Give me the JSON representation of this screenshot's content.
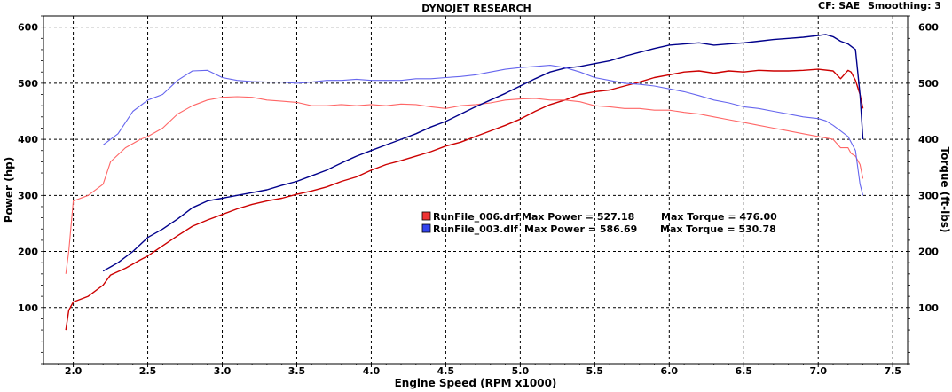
{
  "header": {
    "title": "DYNOJET RESEARCH",
    "correction_label": "CF: SAE",
    "smoothing_label": "Smoothing: 3"
  },
  "chart_data": {
    "type": "line",
    "title": "DYNOJET RESEARCH",
    "xlabel": "Engine Speed (RPM x1000)",
    "ylabel": "Power (hp)",
    "y2label": "Torque (ft-lbs)",
    "xlim": [
      1.8,
      7.6
    ],
    "ylim": [
      0,
      620
    ],
    "y2lim": [
      0,
      620
    ],
    "xticks": [
      "2.0",
      "2.5",
      "3.0",
      "3.5",
      "4.0",
      "4.5",
      "5.0",
      "5.5",
      "6.0",
      "6.5",
      "7.0",
      "7.5"
    ],
    "yticks": [
      "100",
      "200",
      "300",
      "400",
      "500",
      "600"
    ],
    "y2ticks": [
      "100",
      "200",
      "300",
      "400",
      "500",
      "600"
    ],
    "grid": true,
    "legend": [
      {
        "file": "RunFile_006.drf",
        "max_power_label": "Max Power = 527.18",
        "max_torque_label": "Max Torque = 476.00",
        "color": "#cc0000"
      },
      {
        "file": "RunFile_003.dlf",
        "max_power_label": "Max Power = 586.69",
        "max_torque_label": "Max Torque = 530.78",
        "color": "#0000cc"
      }
    ],
    "series": [
      {
        "name": "RunFile_006.drf",
        "metric": "Power",
        "color": "#cc0000",
        "style": "dark",
        "x": [
          1.95,
          1.97,
          2.0,
          2.1,
          2.2,
          2.25,
          2.35,
          2.45,
          2.5,
          2.6,
          2.7,
          2.8,
          2.9,
          3.0,
          3.1,
          3.2,
          3.3,
          3.4,
          3.5,
          3.6,
          3.7,
          3.8,
          3.9,
          4.0,
          4.1,
          4.2,
          4.3,
          4.4,
          4.5,
          4.6,
          4.7,
          4.8,
          4.9,
          5.0,
          5.1,
          5.2,
          5.3,
          5.4,
          5.5,
          5.6,
          5.7,
          5.8,
          5.9,
          6.0,
          6.1,
          6.2,
          6.3,
          6.4,
          6.5,
          6.6,
          6.7,
          6.8,
          6.9,
          7.0,
          7.1,
          7.15,
          7.2,
          7.22,
          7.25,
          7.28,
          7.3
        ],
        "y": [
          60,
          95,
          110,
          120,
          140,
          158,
          170,
          185,
          192,
          210,
          228,
          245,
          256,
          266,
          276,
          284,
          290,
          295,
          302,
          308,
          315,
          325,
          333,
          345,
          355,
          362,
          370,
          378,
          388,
          395,
          405,
          415,
          425,
          436,
          450,
          462,
          470,
          480,
          485,
          488,
          495,
          502,
          510,
          515,
          520,
          522,
          518,
          522,
          520,
          523,
          522,
          522,
          523,
          525,
          522,
          508,
          523,
          520,
          505,
          480,
          455
        ]
      },
      {
        "name": "RunFile_006.drf",
        "metric": "Torque",
        "color": "#ff6666",
        "style": "light",
        "x": [
          1.95,
          1.97,
          2.0,
          2.1,
          2.2,
          2.25,
          2.35,
          2.45,
          2.5,
          2.6,
          2.7,
          2.8,
          2.9,
          3.0,
          3.1,
          3.2,
          3.3,
          3.4,
          3.5,
          3.6,
          3.7,
          3.8,
          3.9,
          4.0,
          4.1,
          4.2,
          4.3,
          4.4,
          4.5,
          4.6,
          4.7,
          4.8,
          4.9,
          5.0,
          5.1,
          5.2,
          5.3,
          5.4,
          5.5,
          5.6,
          5.7,
          5.8,
          5.9,
          6.0,
          6.1,
          6.2,
          6.3,
          6.4,
          6.5,
          6.6,
          6.7,
          6.8,
          6.9,
          7.0,
          7.1,
          7.15,
          7.2,
          7.22,
          7.25,
          7.28,
          7.3
        ],
        "y": [
          160,
          200,
          290,
          300,
          320,
          360,
          385,
          400,
          405,
          420,
          445,
          460,
          470,
          475,
          476,
          475,
          470,
          468,
          466,
          460,
          460,
          462,
          460,
          462,
          460,
          463,
          462,
          458,
          455,
          460,
          462,
          465,
          470,
          472,
          473,
          470,
          470,
          467,
          460,
          458,
          455,
          455,
          452,
          452,
          448,
          445,
          440,
          435,
          430,
          425,
          420,
          415,
          410,
          405,
          400,
          385,
          385,
          375,
          370,
          355,
          330
        ]
      },
      {
        "name": "RunFile_003.dlf",
        "metric": "Power",
        "color": "#00008b",
        "style": "dark",
        "x": [
          2.2,
          2.3,
          2.4,
          2.5,
          2.6,
          2.7,
          2.8,
          2.9,
          3.0,
          3.1,
          3.2,
          3.3,
          3.4,
          3.5,
          3.6,
          3.7,
          3.8,
          3.9,
          4.0,
          4.1,
          4.2,
          4.3,
          4.4,
          4.5,
          4.6,
          4.7,
          4.8,
          4.9,
          5.0,
          5.1,
          5.2,
          5.3,
          5.4,
          5.5,
          5.6,
          5.7,
          5.8,
          5.9,
          6.0,
          6.1,
          6.2,
          6.3,
          6.4,
          6.5,
          6.6,
          6.7,
          6.8,
          6.9,
          7.0,
          7.05,
          7.1,
          7.15,
          7.2,
          7.25,
          7.28,
          7.3
        ],
        "y": [
          165,
          180,
          200,
          225,
          240,
          258,
          278,
          290,
          295,
          300,
          305,
          310,
          318,
          325,
          335,
          345,
          358,
          370,
          380,
          390,
          400,
          410,
          422,
          432,
          445,
          458,
          470,
          482,
          495,
          508,
          520,
          527,
          530,
          535,
          540,
          548,
          555,
          562,
          568,
          570,
          572,
          568,
          570,
          572,
          575,
          578,
          580,
          582,
          585,
          587,
          583,
          575,
          570,
          560,
          480,
          400
        ]
      },
      {
        "name": "RunFile_003.dlf",
        "metric": "Torque",
        "color": "#6666ee",
        "style": "light",
        "x": [
          2.2,
          2.3,
          2.4,
          2.5,
          2.6,
          2.7,
          2.8,
          2.9,
          3.0,
          3.1,
          3.2,
          3.3,
          3.4,
          3.5,
          3.6,
          3.7,
          3.8,
          3.9,
          4.0,
          4.1,
          4.2,
          4.3,
          4.4,
          4.5,
          4.6,
          4.7,
          4.8,
          4.9,
          5.0,
          5.1,
          5.2,
          5.3,
          5.4,
          5.5,
          5.6,
          5.7,
          5.8,
          5.9,
          6.0,
          6.1,
          6.2,
          6.3,
          6.4,
          6.5,
          6.6,
          6.7,
          6.8,
          6.9,
          7.0,
          7.05,
          7.1,
          7.15,
          7.2,
          7.25,
          7.28,
          7.3
        ],
        "y": [
          390,
          410,
          450,
          470,
          480,
          505,
          522,
          523,
          510,
          505,
          503,
          502,
          502,
          500,
          502,
          505,
          505,
          507,
          505,
          505,
          505,
          508,
          508,
          510,
          512,
          515,
          520,
          525,
          528,
          530,
          532,
          528,
          520,
          510,
          505,
          500,
          498,
          495,
          490,
          485,
          478,
          470,
          465,
          458,
          455,
          450,
          445,
          440,
          437,
          433,
          425,
          415,
          405,
          380,
          320,
          300
        ]
      }
    ]
  }
}
